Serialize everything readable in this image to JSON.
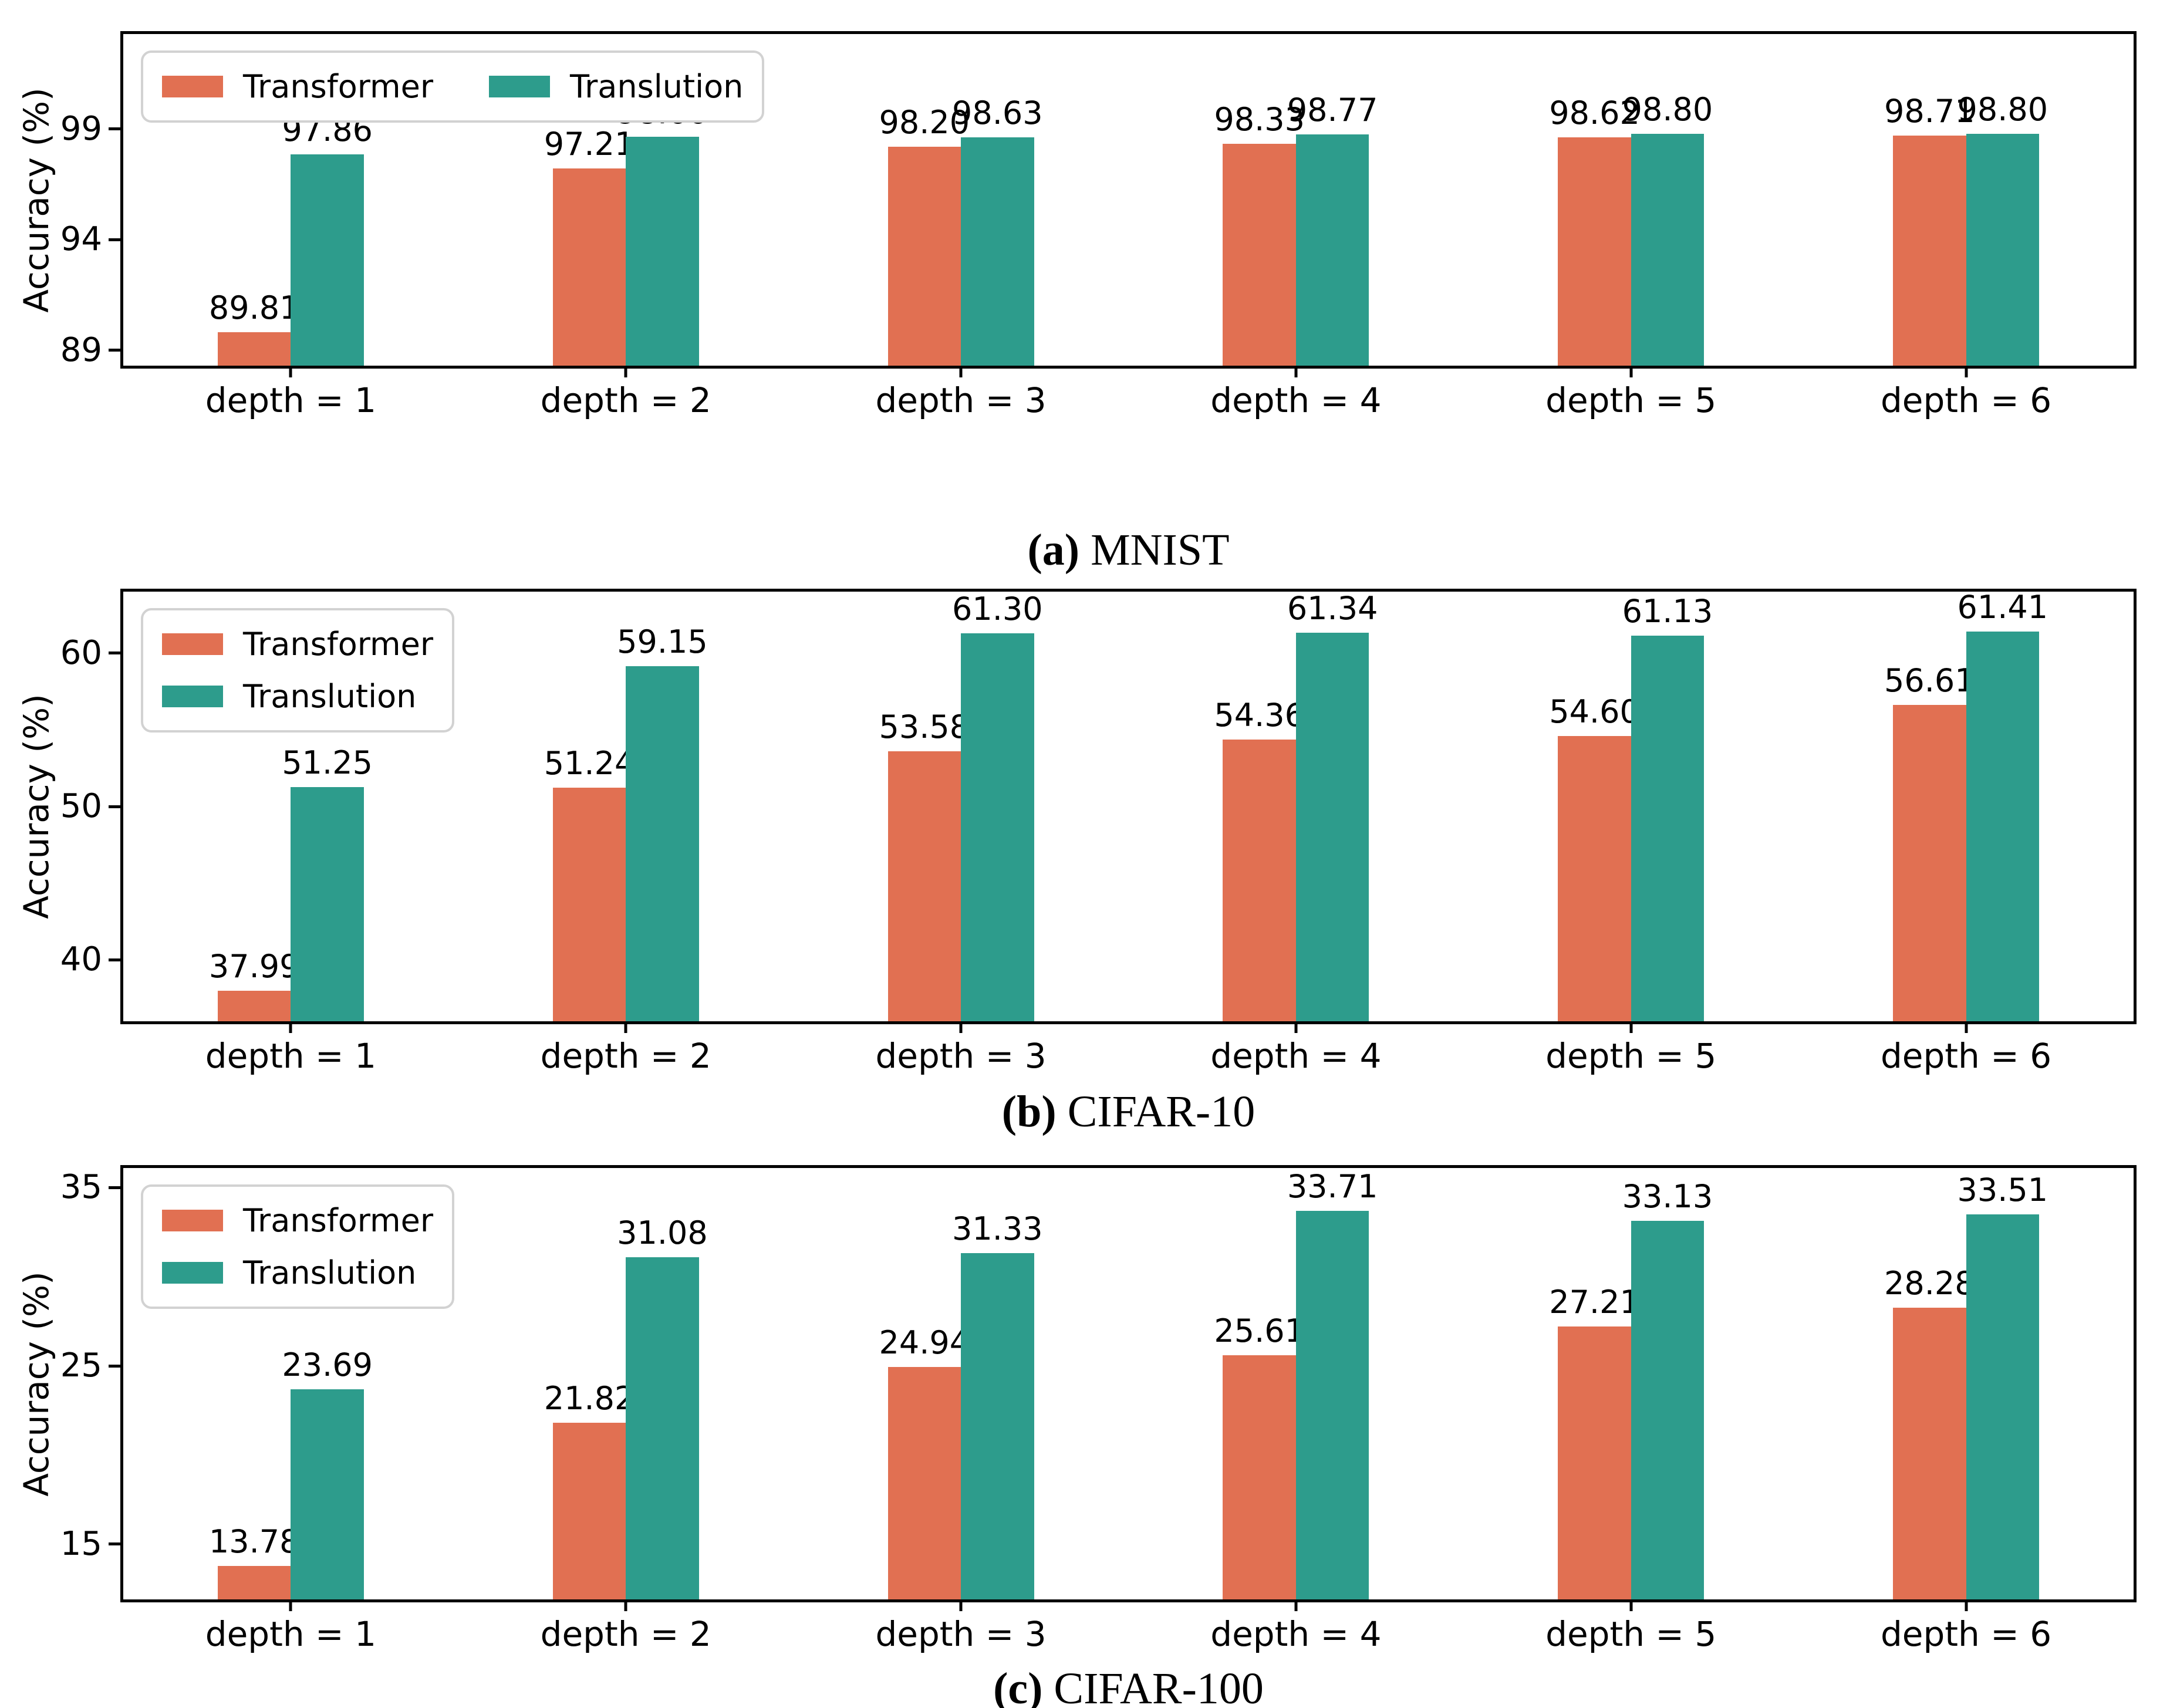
{
  "figure": {
    "background": "#ffffff"
  },
  "chart_data": [
    {
      "type": "bar",
      "caption_prefix": "(a)",
      "caption_text": "MNIST",
      "ylabel": "Accuracy (%)",
      "categories": [
        "depth = 1",
        "depth = 2",
        "depth = 3",
        "depth = 4",
        "depth = 5",
        "depth = 6"
      ],
      "series": [
        {
          "name": "Transformer",
          "color": "#E17052",
          "values": [
            89.81,
            97.21,
            98.2,
            98.33,
            98.62,
            98.71
          ]
        },
        {
          "name": "Translution",
          "color": "#2D9C8C",
          "values": [
            97.86,
            98.66,
            98.63,
            98.77,
            98.8,
            98.8
          ]
        }
      ],
      "yticks": [
        89,
        94,
        99
      ],
      "ylim": [
        88.3,
        103.3
      ],
      "grid": false,
      "legend_position": "upper-left-inside",
      "legend_layout": "horizontal"
    },
    {
      "type": "bar",
      "caption_prefix": "(b)",
      "caption_text": "CIFAR-10",
      "ylabel": "Accuracy (%)",
      "categories": [
        "depth = 1",
        "depth = 2",
        "depth = 3",
        "depth = 4",
        "depth = 5",
        "depth = 6"
      ],
      "series": [
        {
          "name": "Transformer",
          "color": "#E17052",
          "values": [
            37.99,
            51.24,
            53.58,
            54.36,
            54.6,
            56.61
          ]
        },
        {
          "name": "Translution",
          "color": "#2D9C8C",
          "values": [
            51.25,
            59.15,
            61.3,
            61.34,
            61.13,
            61.41
          ]
        }
      ],
      "yticks": [
        40,
        50,
        60
      ],
      "ylim": [
        36.0,
        64.0
      ],
      "grid": false,
      "legend_position": "upper-left-inside",
      "legend_layout": "vertical"
    },
    {
      "type": "bar",
      "caption_prefix": "(c)",
      "caption_text": "CIFAR-100",
      "ylabel": "Accuracy (%)",
      "categories": [
        "depth = 1",
        "depth = 2",
        "depth = 3",
        "depth = 4",
        "depth = 5",
        "depth = 6"
      ],
      "series": [
        {
          "name": "Transformer",
          "color": "#E17052",
          "values": [
            13.78,
            21.82,
            24.94,
            25.61,
            27.21,
            28.28
          ]
        },
        {
          "name": "Translution",
          "color": "#2D9C8C",
          "values": [
            23.69,
            31.08,
            31.33,
            33.71,
            33.13,
            33.51
          ]
        }
      ],
      "yticks": [
        15,
        25,
        35
      ],
      "ylim": [
        11.9,
        36.1
      ],
      "grid": false,
      "legend_position": "upper-left-inside",
      "legend_layout": "vertical"
    }
  ]
}
